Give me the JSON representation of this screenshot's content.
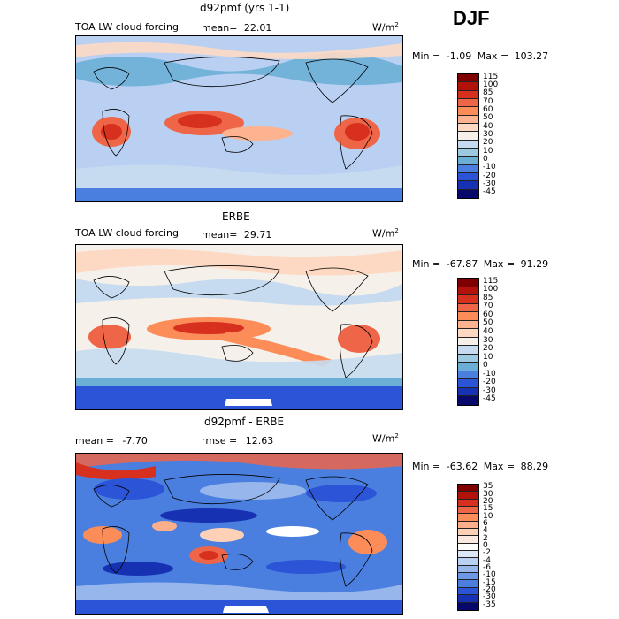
{
  "season": "DJF",
  "panels": [
    {
      "title": "d92pmf (yrs 1-1)",
      "variable": "TOA LW cloud forcing",
      "mean_label": "mean=",
      "mean": "22.01",
      "units": "W/m",
      "units_exp": "2",
      "min_label": "Min =",
      "min": "-1.09",
      "max_label": "Max =",
      "max": "103.27",
      "colorbar": [
        "115",
        "100",
        "85",
        "70",
        "60",
        "50",
        "40",
        "30",
        "20",
        "10",
        "0",
        "-10",
        "-20",
        "-30",
        "-45"
      ]
    },
    {
      "title": "ERBE",
      "variable": "TOA LW cloud forcing",
      "mean_label": "mean=",
      "mean": "29.71",
      "units": "W/m",
      "units_exp": "2",
      "min_label": "Min =",
      "min": "-67.87",
      "max_label": "Max =",
      "max": "91.29",
      "colorbar": [
        "115",
        "100",
        "85",
        "70",
        "60",
        "50",
        "40",
        "30",
        "20",
        "10",
        "0",
        "-10",
        "-20",
        "-30",
        "-45"
      ]
    },
    {
      "title": "d92pmf - ERBE",
      "mean_label": "mean =",
      "mean": "-7.70",
      "rmse_label": "rmse =",
      "rmse": "12.63",
      "units": "W/m",
      "units_exp": "2",
      "min_label": "Min =",
      "min": "-63.62",
      "max_label": "Max =",
      "max": "88.29",
      "colorbar": [
        "35",
        "30",
        "20",
        "15",
        "10",
        "6",
        "4",
        "2",
        "0",
        "-2",
        "-4",
        "-6",
        "-10",
        "-15",
        "-20",
        "-30",
        "-35"
      ]
    }
  ],
  "colors": {
    "abs_scale": [
      "#7f0000",
      "#b2120a",
      "#d7301f",
      "#ef6548",
      "#fc8d59",
      "#fdb38f",
      "#fdd9c4",
      "#f5f0ea",
      "#c6dbef",
      "#9ecae1",
      "#6baed6",
      "#4a7fe0",
      "#2b55d6",
      "#1632b3",
      "#08086b"
    ],
    "diff_scale": [
      "#7f0000",
      "#b2120a",
      "#d7301f",
      "#ef6548",
      "#fc8d59",
      "#fdae8a",
      "#fdd0b8",
      "#fbe9df",
      "#ffffff",
      "#dbe6f7",
      "#b9d0f2",
      "#97b7ec",
      "#6d98e6",
      "#4a7fe0",
      "#2b55d6",
      "#1632b3",
      "#08086b"
    ]
  }
}
